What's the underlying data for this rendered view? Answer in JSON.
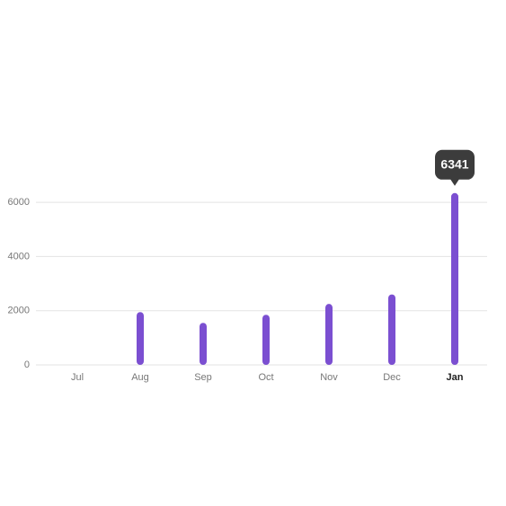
{
  "chart_data": {
    "type": "bar",
    "categories": [
      "Jul",
      "Aug",
      "Sep",
      "Oct",
      "Nov",
      "Dec",
      "Jan"
    ],
    "values": [
      null,
      1950,
      1550,
      1850,
      2250,
      2600,
      6341
    ],
    "color": "#7b4fd1",
    "ylim": [
      0,
      6500
    ],
    "yticks": [
      0,
      2000,
      4000,
      6000
    ],
    "grid": true,
    "highlight_index": 6
  }
}
